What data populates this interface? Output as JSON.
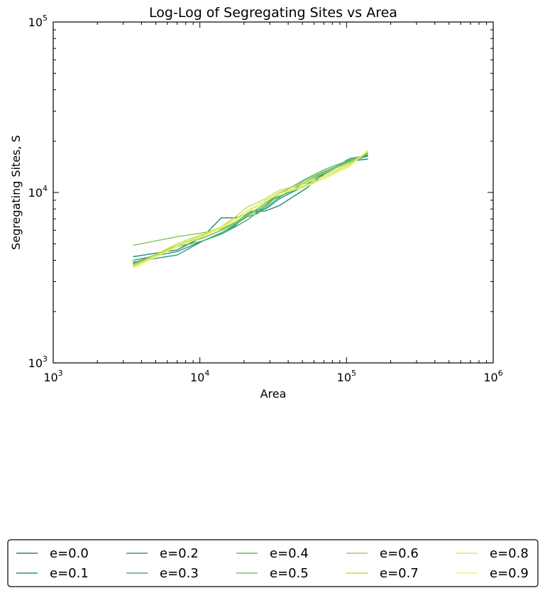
{
  "chart_data": {
    "type": "line",
    "title": "Log-Log of Segregating Sites vs Area",
    "xlabel": "Area",
    "ylabel": "Segregating Sites, S",
    "x_scale": "log",
    "y_scale": "log",
    "xlim": [
      1000,
      1000000
    ],
    "ylim": [
      1000,
      100000
    ],
    "x_ticks": [
      {
        "base": "10",
        "exp": "3",
        "value": 1000
      },
      {
        "base": "10",
        "exp": "4",
        "value": 10000
      },
      {
        "base": "10",
        "exp": "5",
        "value": 100000
      },
      {
        "base": "10",
        "exp": "6",
        "value": 1000000
      }
    ],
    "y_ticks": [
      {
        "base": "10",
        "exp": "3",
        "value": 1000
      },
      {
        "base": "10",
        "exp": "4",
        "value": 10000
      },
      {
        "base": "10",
        "exp": "5",
        "value": 100000
      }
    ],
    "grid": false,
    "legend_placement": "below-plot",
    "legend_columns": 5,
    "x": [
      3500,
      7000,
      10500,
      14000,
      17500,
      21000,
      24500,
      28000,
      31500,
      35000,
      52500,
      70000,
      105000,
      140000
    ],
    "series": [
      {
        "name": "e=0.0",
        "color": "#1b8a77",
        "values": [
          4200,
          4600,
          5500,
          7100,
          7100,
          7500,
          7700,
          7800,
          8100,
          8400,
          10500,
          12800,
          15300,
          15700
        ]
      },
      {
        "name": "e=0.1",
        "color": "#27967a",
        "values": [
          4000,
          4500,
          5200,
          5800,
          6400,
          7600,
          7900,
          8000,
          8600,
          9200,
          11000,
          12900,
          15800,
          16500
        ]
      },
      {
        "name": "e=0.2",
        "color": "#34a17a",
        "values": [
          3900,
          4300,
          5200,
          5700,
          6300,
          6900,
          7600,
          8300,
          9100,
          9500,
          11000,
          13000,
          15300,
          16300
        ]
      },
      {
        "name": "e=0.3",
        "color": "#4caf6f",
        "values": [
          3850,
          4800,
          5200,
          5800,
          6500,
          7200,
          7500,
          8100,
          8800,
          9400,
          11500,
          13200,
          15400,
          16700
        ]
      },
      {
        "name": "e=0.4",
        "color": "#68bb64",
        "values": [
          3800,
          4900,
          5400,
          6000,
          6600,
          7300,
          7800,
          8500,
          9200,
          9800,
          12000,
          13600,
          15500,
          16900
        ]
      },
      {
        "name": "e=0.5",
        "color": "#82c45e",
        "values": [
          4900,
          5500,
          5800,
          6100,
          6700,
          7400,
          8000,
          8700,
          9300,
          9900,
          11800,
          13300,
          15200,
          17000
        ]
      },
      {
        "name": "e=0.6",
        "color": "#a1cf5b",
        "values": [
          3750,
          4800,
          5600,
          6200,
          6900,
          7600,
          8300,
          9000,
          9500,
          10000,
          11500,
          13000,
          15000,
          17200
        ]
      },
      {
        "name": "e=0.7",
        "color": "#c2dc57",
        "values": [
          3700,
          5000,
          5700,
          6300,
          7200,
          8200,
          8700,
          9200,
          9800,
          10300,
          11300,
          12500,
          14700,
          17400
        ]
      },
      {
        "name": "e=0.8",
        "color": "#ddea5f",
        "values": [
          3650,
          4900,
          5600,
          6300,
          7000,
          7800,
          8400,
          9000,
          9500,
          9900,
          11000,
          12200,
          14400,
          17600
        ]
      },
      {
        "name": "e=0.9",
        "color": "#f3f56a",
        "values": [
          3600,
          4800,
          5500,
          6200,
          6900,
          7600,
          8300,
          8900,
          9400,
          9800,
          10800,
          12000,
          14200,
          17800
        ]
      }
    ]
  }
}
